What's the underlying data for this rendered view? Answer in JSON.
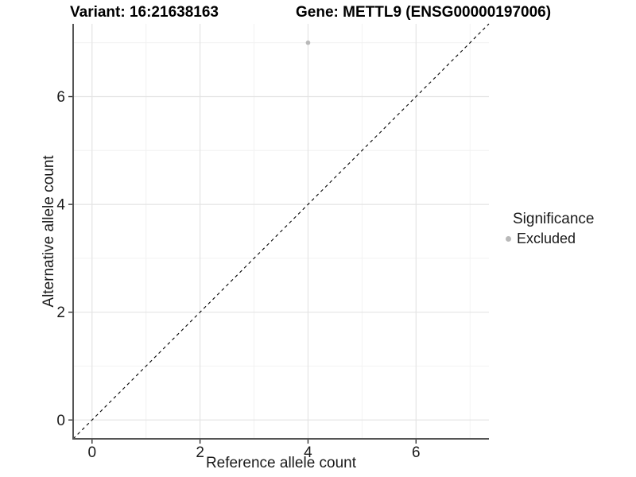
{
  "titles": {
    "variant": "Variant: 16:21638163",
    "gene": "Gene: METTL9 (ENSG00000197006)"
  },
  "chart_data": {
    "type": "scatter",
    "xlabel": "Reference allele count",
    "ylabel": "Alternative allele count",
    "xlim": [
      -0.35,
      7.35
    ],
    "ylim": [
      -0.35,
      7.35
    ],
    "x_major_ticks": [
      0,
      2,
      4,
      6
    ],
    "y_major_ticks": [
      0,
      2,
      4,
      6
    ],
    "x_minor_ticks": [
      1,
      3,
      5,
      7
    ],
    "y_minor_ticks": [
      1,
      3,
      5,
      7
    ],
    "grid": true,
    "reference_line": {
      "type": "identity",
      "slope": 1,
      "intercept": 0,
      "style": "dashed",
      "color": "#000000"
    },
    "series": [
      {
        "name": "Excluded",
        "color": "#b9b9b9",
        "points": [
          {
            "x": 4,
            "y": 7
          }
        ]
      }
    ],
    "legend": {
      "title": "Significance",
      "position": "right",
      "entries": [
        {
          "label": "Excluded",
          "color": "#b9b9b9"
        }
      ]
    },
    "theme": {
      "grid_major": "#e4e4e4",
      "grid_minor": "#f2f2f2",
      "axis_line": "#555555",
      "tick": "#333333",
      "text": "#1a1a1a",
      "background": "#ffffff"
    }
  }
}
